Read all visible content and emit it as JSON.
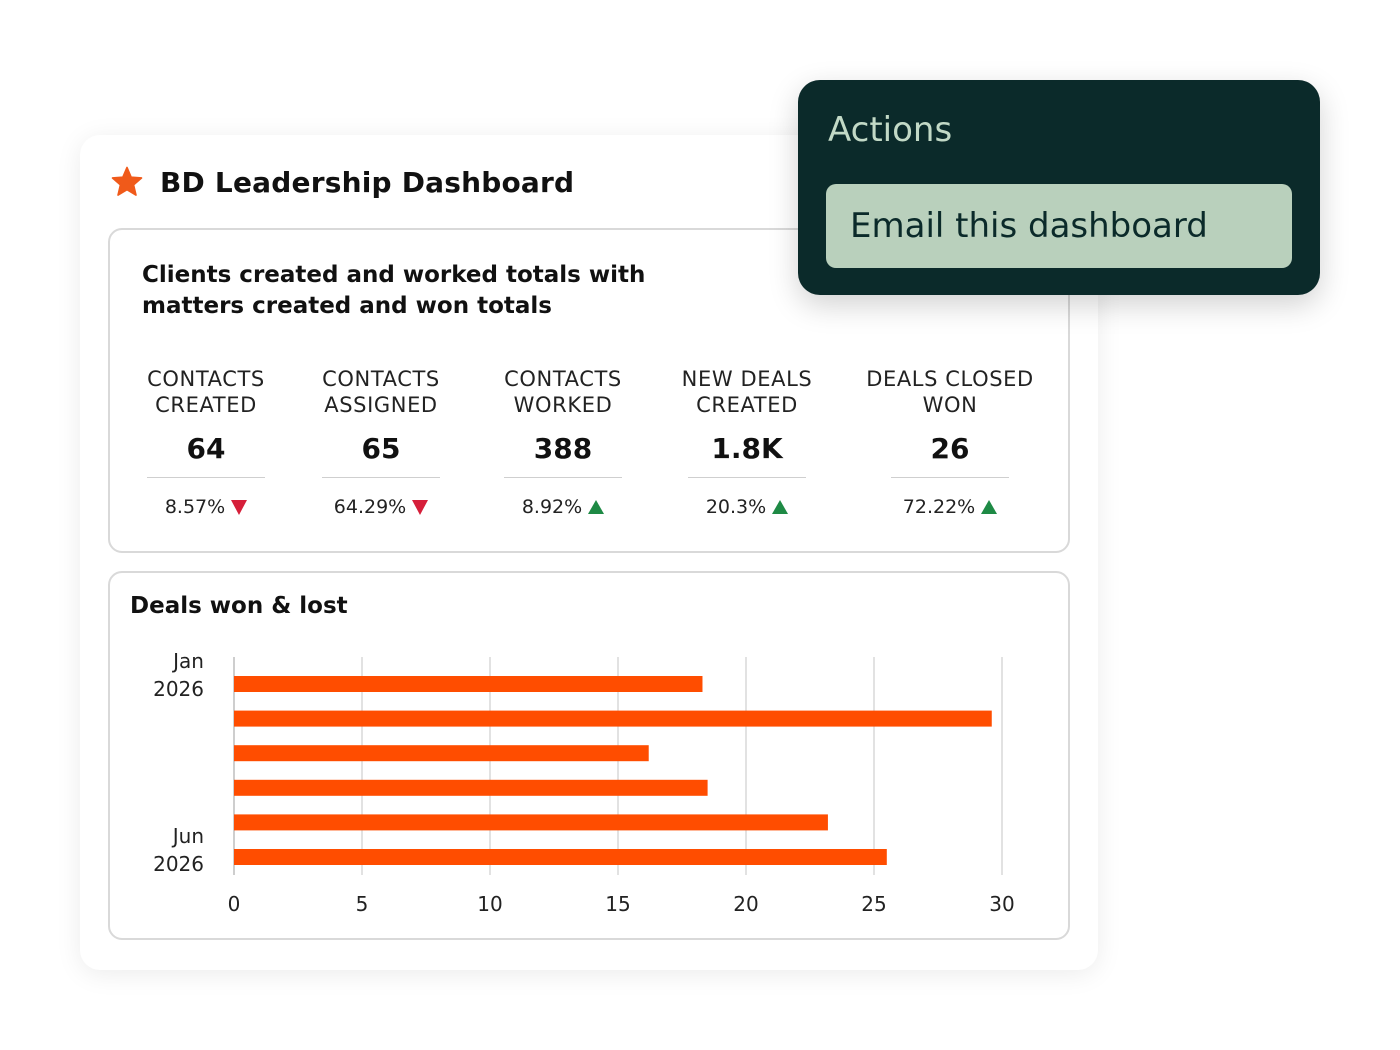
{
  "dashboard": {
    "title": "BD Leadership Dashboard",
    "star_color": "#f05a1a"
  },
  "kpi_panel": {
    "title": "Clients created and worked totals with matters created and won totals",
    "items": [
      {
        "label": "CONTACTS CREATED",
        "value": "64",
        "change": "8.57%",
        "trend": "down"
      },
      {
        "label": "CONTACTS ASSIGNED",
        "value": "65",
        "change": "64.29%",
        "trend": "down"
      },
      {
        "label": "CONTACTS WORKED",
        "value": "388",
        "change": "8.92%",
        "trend": "up"
      },
      {
        "label": "NEW DEALS CREATED",
        "value": "1.8K",
        "change": "20.3%",
        "trend": "up"
      },
      {
        "label": "DEALS CLOSED WON",
        "value": "26",
        "change": "72.22%",
        "trend": "up"
      }
    ],
    "colors": {
      "down": "#d61f3a",
      "up": "#1e8a45"
    }
  },
  "chart_panel": {
    "title": "Deals won & lost"
  },
  "chart_data": {
    "type": "bar",
    "orientation": "horizontal",
    "title": "Deals won & lost",
    "categories": [
      "Jan 2026",
      "",
      "",
      "",
      "",
      "Jun 2026"
    ],
    "values": [
      18.3,
      29.6,
      16.2,
      18.5,
      23.2,
      25.5
    ],
    "xlim": [
      0,
      30
    ],
    "xticks": [
      0,
      5,
      10,
      15,
      20,
      25,
      30
    ],
    "grid": true,
    "bar_color": "#ff4d00"
  },
  "actions_menu": {
    "title": "Actions",
    "items": [
      "Email this dashboard"
    ]
  }
}
